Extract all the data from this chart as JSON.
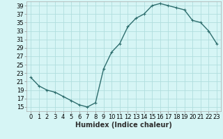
{
  "x": [
    0,
    1,
    2,
    3,
    4,
    5,
    6,
    7,
    8,
    9,
    10,
    11,
    12,
    13,
    14,
    15,
    16,
    17,
    18,
    19,
    20,
    21,
    22,
    23
  ],
  "y": [
    22,
    20,
    19,
    18.5,
    17.5,
    16.5,
    15.5,
    15,
    16,
    24,
    28,
    30,
    34,
    36,
    37,
    39,
    39.5,
    39,
    38.5,
    38,
    35.5,
    35,
    33,
    30
  ],
  "line_color": "#2e6e6e",
  "marker": "+",
  "marker_size": 3,
  "background_color": "#d6f5f5",
  "grid_color": "#b0dede",
  "xlabel": "Humidex (Indice chaleur)",
  "xlim": [
    -0.5,
    23.5
  ],
  "ylim": [
    14,
    40
  ],
  "yticks": [
    15,
    17,
    19,
    21,
    23,
    25,
    27,
    29,
    31,
    33,
    35,
    37,
    39
  ],
  "xticks": [
    0,
    1,
    2,
    3,
    4,
    5,
    6,
    7,
    8,
    9,
    10,
    11,
    12,
    13,
    14,
    15,
    16,
    17,
    18,
    19,
    20,
    21,
    22,
    23
  ],
  "xlabel_fontsize": 7,
  "tick_fontsize": 6,
  "line_width": 1.0
}
